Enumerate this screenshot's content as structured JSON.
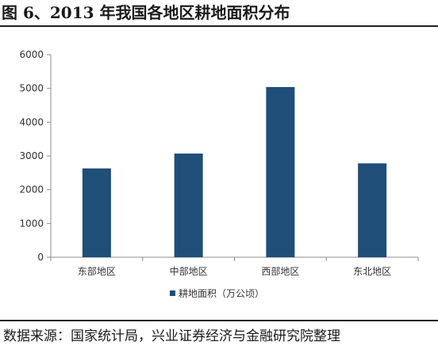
{
  "figure": {
    "title": "图 6、2013 年我国各地区耕地面积分布",
    "source": "数据来源：国家统计局，兴业证券经济与金融研究院整理"
  },
  "chart_data": {
    "type": "bar",
    "categories": [
      "东部地区",
      "中部地区",
      "西部地区",
      "东北地区"
    ],
    "series": [
      {
        "name": "耕地面积（万公顷）",
        "values": [
          2630,
          3070,
          5040,
          2780
        ]
      }
    ],
    "ylim": [
      0,
      6000
    ],
    "yticks": [
      0,
      1000,
      2000,
      3000,
      4000,
      5000,
      6000
    ],
    "bar_color": "#1f4e79",
    "grid": false,
    "legend_position": "bottom"
  }
}
